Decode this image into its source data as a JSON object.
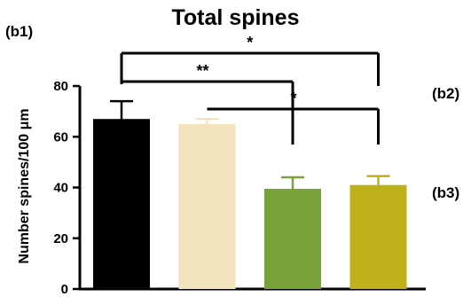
{
  "chart_data": {
    "type": "bar",
    "title": "Total spines",
    "ylabel": "Number spines/100 μm",
    "ylim": [
      0,
      80
    ],
    "yticks": [
      0,
      20,
      40,
      60,
      80
    ],
    "categories": [
      "",
      "",
      "",
      ""
    ],
    "values": [
      67,
      65,
      39.5,
      41
    ],
    "errors": [
      7,
      2,
      4.5,
      3.5
    ],
    "colors": [
      "#000000",
      "#f3e3bd",
      "#7aa23c",
      "#bfb11c"
    ],
    "grid": false,
    "significance": [
      {
        "from": 0,
        "to": 3,
        "label": "*"
      },
      {
        "from": 0,
        "to": 2,
        "label": "**"
      },
      {
        "from": 1,
        "to": 3,
        "label": "*"
      }
    ]
  },
  "panel_labels": {
    "b1": "(b1)",
    "b2": "(b2)",
    "b3": "(b3)"
  }
}
